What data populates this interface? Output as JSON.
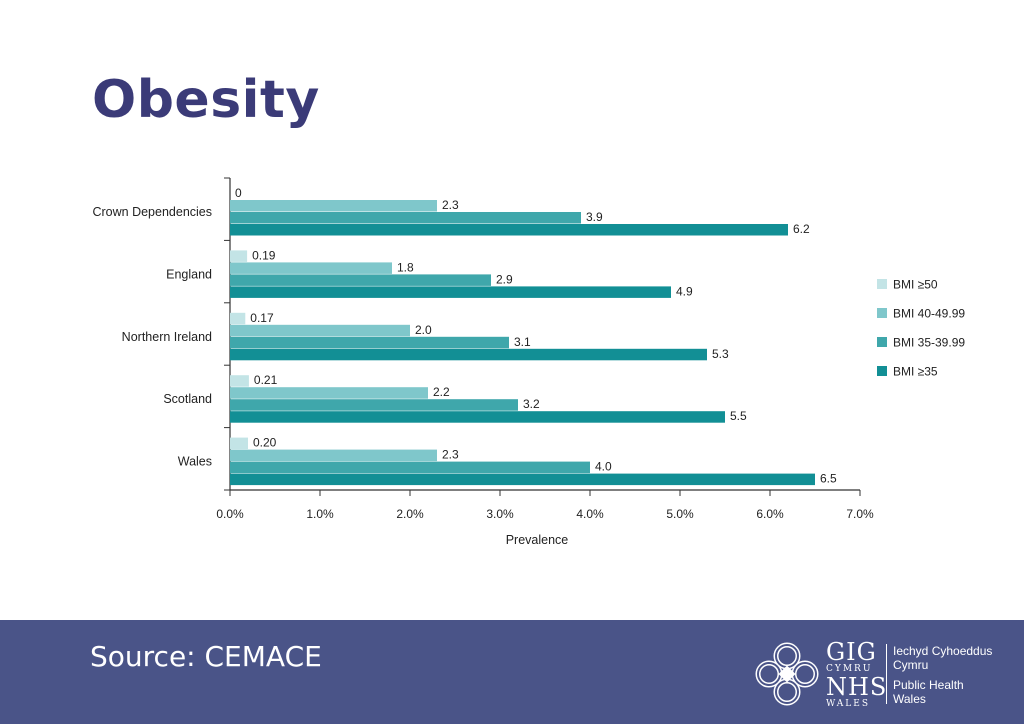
{
  "slide": {
    "title": "Obesity",
    "source": "Source: CEMACE"
  },
  "logo": {
    "gig": "GIG",
    "cymru": "CYMRU",
    "nhs": "NHS",
    "wales": "WALES",
    "org_welsh_1": "Iechyd Cyhoeddus",
    "org_welsh_2": "Cymru",
    "org_english_1": "Public Health",
    "org_english_2": "Wales"
  },
  "colors": {
    "title": "#3b3b78",
    "footer": "#4a5488"
  },
  "chart_data": {
    "type": "bar",
    "orientation": "horizontal",
    "categories": [
      "Crown Dependencies",
      "England",
      "Northern Ireland",
      "Scotland",
      "Wales"
    ],
    "series": [
      {
        "name": "BMI ≥50",
        "color": "#c3e4e6",
        "values": [
          0,
          0.19,
          0.17,
          0.21,
          0.2
        ],
        "labels": [
          "0",
          "0.19",
          "0.17",
          "0.21",
          "0.20"
        ]
      },
      {
        "name": "BMI 40-49.99",
        "color": "#7fc7cb",
        "values": [
          2.3,
          1.8,
          2.0,
          2.2,
          2.3
        ],
        "labels": [
          "2.3",
          "1.8",
          "2.0",
          "2.2",
          "2.3"
        ]
      },
      {
        "name": "BMI 35-39.99",
        "color": "#3fa7ab",
        "values": [
          3.9,
          2.9,
          3.1,
          3.2,
          4.0
        ],
        "labels": [
          "3.9",
          "2.9",
          "3.1",
          "3.2",
          "4.0"
        ]
      },
      {
        "name": "BMI ≥35",
        "color": "#128f95",
        "values": [
          6.2,
          4.9,
          5.3,
          5.5,
          6.5
        ],
        "labels": [
          "6.2",
          "4.9",
          "5.3",
          "5.5",
          "6.5"
        ]
      }
    ],
    "xlabel": "Prevalence",
    "xlim": [
      0,
      7
    ],
    "xticks": [
      "0.0%",
      "1.0%",
      "2.0%",
      "3.0%",
      "4.0%",
      "5.0%",
      "6.0%",
      "7.0%"
    ],
    "legend_position": "right",
    "grid": false
  }
}
